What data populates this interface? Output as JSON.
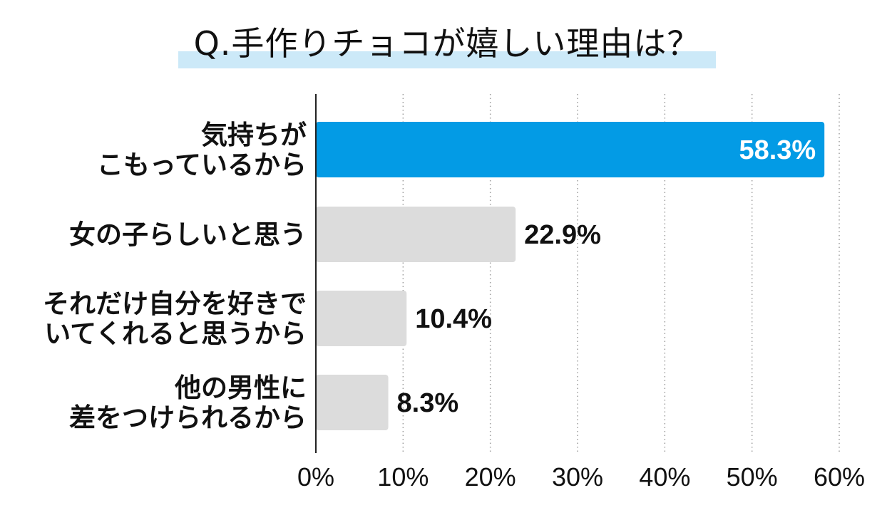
{
  "chart_data": {
    "type": "bar",
    "orientation": "horizontal",
    "title": "Q.手作りチョコが嬉しい理由は？",
    "categories": [
      [
        "気持ちが",
        "こもっているから"
      ],
      [
        "女の子らしいと思う"
      ],
      [
        "それだけ自分を好きで",
        "いてくれると思うから"
      ],
      [
        "他の男性に",
        "差をつけられるから"
      ]
    ],
    "values": [
      58.3,
      22.9,
      10.4,
      8.3
    ],
    "value_labels": [
      "58.3%",
      "22.9%",
      "10.4%",
      "8.3%"
    ],
    "xlim": [
      0,
      60
    ],
    "xticks": [
      0,
      10,
      20,
      30,
      40,
      50,
      60
    ],
    "xtick_labels": [
      "0%",
      "10%",
      "20%",
      "30%",
      "40%",
      "50%",
      "60%"
    ],
    "xlabel": "",
    "ylabel": "",
    "grid": "vertical dotted",
    "highlight_index": 0,
    "colors": {
      "highlight": "#039be5",
      "bar": "#dcdcdc",
      "grid": "#9e9e9e",
      "axis": "#222222",
      "text": "#111111",
      "highlight_text": "#ffffff",
      "title_underline": "#cce9f8"
    }
  }
}
